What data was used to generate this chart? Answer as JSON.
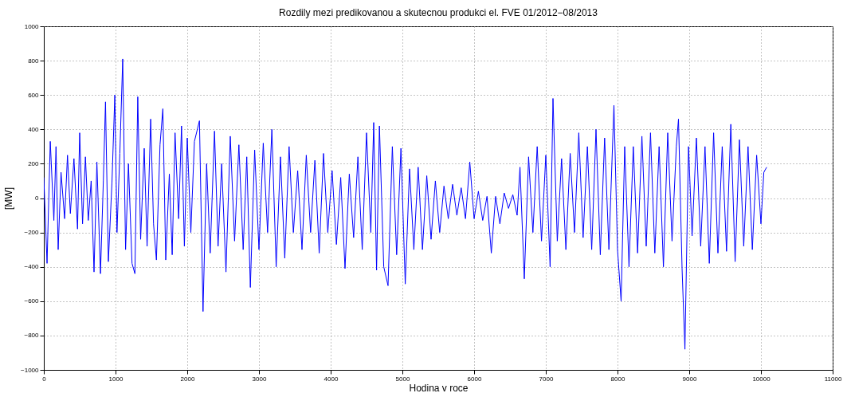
{
  "chart_data": {
    "type": "line",
    "title": "Rozdily mezi predikovanou a skutecnou produkci el. FVE 01/2012−08/2013",
    "xlabel": "Hodina v roce",
    "ylabel": "[MW]",
    "x": [
      0,
      45,
      90,
      140,
      170,
      200,
      240,
      290,
      330,
      370,
      420,
      470,
      500,
      540,
      580,
      620,
      660,
      700,
      740,
      790,
      830,
      860,
      900,
      950,
      990,
      1020,
      1060,
      1100,
      1140,
      1180,
      1230,
      1270,
      1310,
      1350,
      1400,
      1440,
      1490,
      1530,
      1570,
      1620,
      1660,
      1700,
      1750,
      1790,
      1830,
      1880,
      1920,
      1960,
      2000,
      2050,
      2100,
      2170,
      2220,
      2270,
      2320,
      2380,
      2430,
      2480,
      2540,
      2600,
      2660,
      2720,
      2780,
      2830,
      2880,
      2940,
      3000,
      3060,
      3120,
      3180,
      3240,
      3300,
      3360,
      3420,
      3480,
      3540,
      3600,
      3660,
      3720,
      3780,
      3840,
      3900,
      3960,
      4020,
      4080,
      4140,
      4200,
      4260,
      4320,
      4380,
      4440,
      4500,
      4560,
      4600,
      4640,
      4680,
      4740,
      4800,
      4860,
      4920,
      4980,
      5040,
      5100,
      5160,
      5220,
      5280,
      5340,
      5400,
      5460,
      5520,
      5580,
      5640,
      5700,
      5760,
      5820,
      5880,
      5940,
      6000,
      6060,
      6120,
      6180,
      6240,
      6300,
      6360,
      6420,
      6480,
      6540,
      6600,
      6640,
      6700,
      6760,
      6820,
      6880,
      6940,
      7000,
      7060,
      7100,
      7160,
      7220,
      7280,
      7340,
      7400,
      7460,
      7520,
      7580,
      7640,
      7700,
      7760,
      7820,
      7880,
      7950,
      8000,
      8050,
      8100,
      8160,
      8220,
      8280,
      8340,
      8400,
      8460,
      8520,
      8580,
      8640,
      8700,
      8760,
      8820,
      8850,
      8900,
      8940,
      8990,
      9040,
      9100,
      9160,
      9220,
      9280,
      9340,
      9400,
      9460,
      9520,
      9580,
      9640,
      9700,
      9760,
      9820,
      9880,
      9940,
      10000,
      10040,
      10080
    ],
    "series": [
      {
        "color": "#0000ff",
        "values": [
          120,
          -380,
          330,
          -130,
          300,
          -300,
          150,
          -120,
          250,
          -90,
          230,
          -180,
          380,
          -150,
          240,
          -130,
          100,
          -430,
          210,
          -440,
          100,
          560,
          -370,
          90,
          600,
          -200,
          260,
          810,
          -300,
          200,
          -380,
          -440,
          590,
          -240,
          290,
          -280,
          460,
          -150,
          -360,
          310,
          520,
          -360,
          140,
          -330,
          380,
          -120,
          420,
          -280,
          350,
          -200,
          330,
          450,
          -660,
          200,
          -320,
          390,
          -280,
          200,
          -430,
          360,
          -250,
          310,
          -300,
          240,
          -520,
          280,
          -300,
          320,
          -200,
          400,
          -400,
          240,
          -350,
          300,
          -200,
          160,
          -300,
          250,
          -200,
          220,
          -320,
          260,
          -200,
          160,
          -270,
          120,
          -410,
          140,
          -230,
          240,
          -300,
          380,
          -200,
          440,
          -420,
          420,
          -400,
          -510,
          300,
          -330,
          290,
          -500,
          170,
          -300,
          180,
          -300,
          130,
          -240,
          100,
          -200,
          70,
          -120,
          80,
          -100,
          60,
          -120,
          210,
          -120,
          40,
          -130,
          10,
          -320,
          10,
          -150,
          30,
          -60,
          20,
          -100,
          180,
          -470,
          240,
          -200,
          300,
          -250,
          250,
          -400,
          580,
          -250,
          230,
          -300,
          260,
          -200,
          380,
          -230,
          300,
          -300,
          400,
          -330,
          350,
          -300,
          540,
          -300,
          -600,
          300,
          -400,
          300,
          -320,
          360,
          -280,
          380,
          -320,
          300,
          -400,
          380,
          -250,
          300,
          460,
          -410,
          -880,
          300,
          -220,
          350,
          -280,
          300,
          -380,
          380,
          -320,
          300,
          -310,
          430,
          -370,
          340,
          -280,
          300,
          -300,
          250,
          -150,
          150,
          180
        ]
      }
    ],
    "xlim": [
      0,
      11000
    ],
    "xticks": [
      0,
      1000,
      2000,
      3000,
      4000,
      5000,
      6000,
      7000,
      8000,
      9000,
      10000,
      11000
    ],
    "ylim": [
      -1000,
      1000
    ],
    "yticks": [
      -1000,
      -800,
      -600,
      -400,
      -200,
      0,
      200,
      400,
      600,
      800,
      1000
    ],
    "grid": true,
    "line_style": "solid",
    "marker": "none"
  }
}
